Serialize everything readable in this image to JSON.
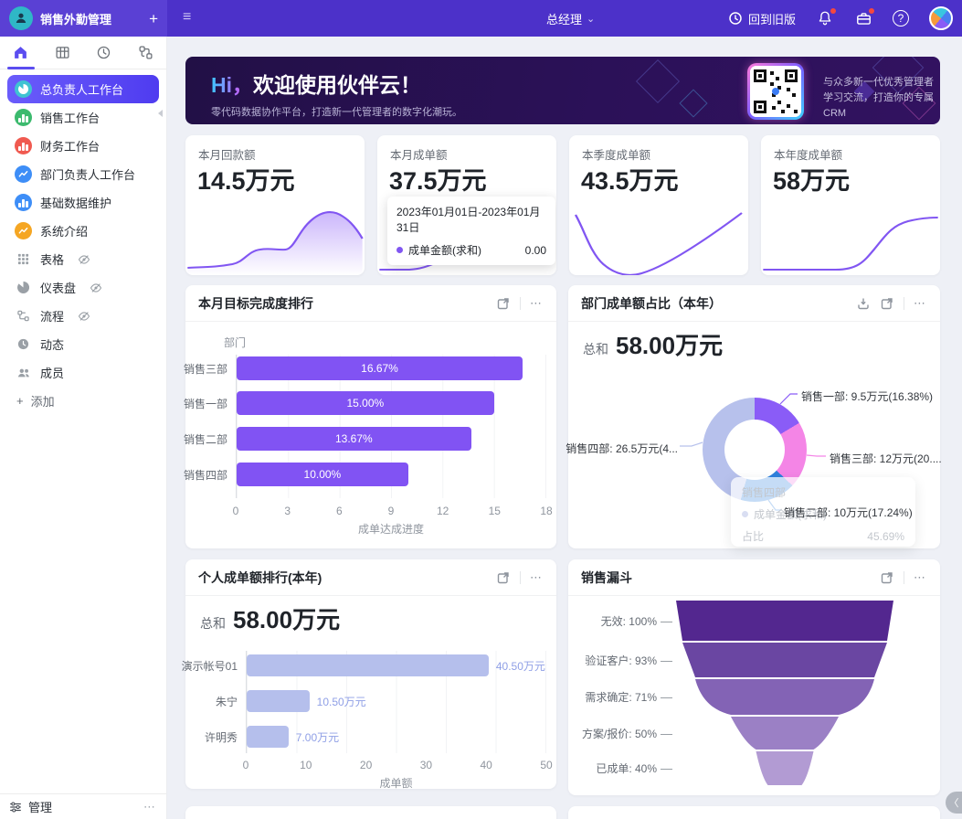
{
  "icons": {
    "plus": "+",
    "hamburger": "≡",
    "chevron_down": "⌄",
    "more": "⋯",
    "help": "?",
    "collapse": "〈"
  },
  "colors": {
    "topbar_left": "#5a40d4",
    "topbar_right": "#4c31c9",
    "accent_purple": "#8156f2",
    "goal_bar": "#8153f3",
    "person_bar": "#b5bfec",
    "sidebar_selected": "#5b4df0"
  },
  "topbar": {
    "app_name": "销售外勤管理",
    "role": "总经理",
    "back_label": "回到旧版"
  },
  "sidebar": {
    "items": [
      {
        "label": "总负责人工作台",
        "selected": true
      },
      {
        "label": "销售工作台"
      },
      {
        "label": "财务工作台"
      },
      {
        "label": "部门负责人工作台"
      },
      {
        "label": "基础数据维护"
      },
      {
        "label": "系统介绍"
      },
      {
        "label": "表格",
        "hidden_eye": true
      },
      {
        "label": "仪表盘",
        "hidden_eye": true
      },
      {
        "label": "流程",
        "hidden_eye": true
      },
      {
        "label": "动态"
      },
      {
        "label": "成员"
      }
    ],
    "add_label": "添加",
    "manage_label": "管理"
  },
  "banner": {
    "hi": "Hi，",
    "title": "欢迎使用伙伴云！",
    "subtitle": "零代码数据协作平台，打造新一代管理者的数字化潮玩。",
    "qr_line1": "与众多新一代优秀管理者",
    "qr_line2": "学习交流，打造你的专属CRM"
  },
  "stats": [
    {
      "label": "本月回款额",
      "value": "14.5万元"
    },
    {
      "label": "本月成单额",
      "value": "37.5万元",
      "tooltip": {
        "date_range": "2023年01月01日-2023年01月31日",
        "series": "成单金额(求和)",
        "value": "0.00"
      }
    },
    {
      "label": "本季度成单额",
      "value": "43.5万元"
    },
    {
      "label": "本年度成单额",
      "value": "58万元"
    }
  ],
  "chart_data": [
    {
      "type": "bar",
      "title": "本月目标完成度排行",
      "ylabel": "部门",
      "xlabel": "成单达成进度",
      "categories": [
        "销售三部",
        "销售一部",
        "销售二部",
        "销售四部"
      ],
      "values": [
        16.67,
        15.0,
        13.67,
        10.0
      ],
      "bar_labels": [
        "16.67%",
        "15.00%",
        "13.67%",
        "10.00%"
      ],
      "xticks": [
        "0",
        "3",
        "6",
        "9",
        "12",
        "15",
        "18"
      ],
      "xlim": [
        0,
        18
      ],
      "grid": true,
      "bar_color": "#8153f3"
    },
    {
      "type": "pie",
      "title": "部门成单额占比（本年）",
      "total_label": "总和",
      "total_value": "58.00万元",
      "slices": [
        {
          "name": "销售一部",
          "value_wan": 9.5,
          "pct": 16.38,
          "label": "销售一部: 9.5万元(16.38%)",
          "color": "#8a5cf7"
        },
        {
          "name": "销售三部",
          "value_wan": 12,
          "pct": 20.69,
          "label": "销售三部: 12万元(20....",
          "color": "#f485e6"
        },
        {
          "name": "销售二部",
          "value_wan": 10,
          "pct": 17.24,
          "label": "销售二部: 10万元(17.24%)",
          "color": "#2f80dd"
        },
        {
          "name": "销售四部",
          "value_wan": 26.5,
          "pct": 45.69,
          "label": "销售四部: 26.5万元(4...",
          "color": "#b7c1ec"
        }
      ],
      "tooltip": {
        "title": "销售四部",
        "row1_label": "成单金额(求和)",
        "row2_label": "占比",
        "row2_value": "45.69%"
      }
    },
    {
      "type": "bar",
      "title": "个人成单额排行(本年)",
      "total_label": "总和",
      "total_value": "58.00万元",
      "xlabel": "成单额",
      "categories": [
        "演示帐号01",
        "朱宁",
        "许明秀"
      ],
      "values": [
        40.5,
        10.5,
        7.0
      ],
      "value_labels": [
        "40.50万元",
        "10.50万元",
        "7.00万元"
      ],
      "xticks": [
        "0",
        "10",
        "20",
        "30",
        "40",
        "50"
      ],
      "xlim": [
        0,
        50
      ],
      "grid": true,
      "bar_color": "#b5bfec"
    },
    {
      "type": "funnel",
      "title": "销售漏斗",
      "stages": [
        {
          "label": "无效: 100%",
          "pct": 100,
          "color": "#53278f"
        },
        {
          "label": "验证客户: 93%",
          "pct": 93,
          "color": "#6a46a2"
        },
        {
          "label": "需求确定: 71%",
          "pct": 71,
          "color": "#8363b5"
        },
        {
          "label": "方案/报价: 50%",
          "pct": 50,
          "color": "#9b80c5"
        },
        {
          "label": "已成单: 40%",
          "pct": 40,
          "color": "#b29bd3"
        }
      ]
    }
  ]
}
